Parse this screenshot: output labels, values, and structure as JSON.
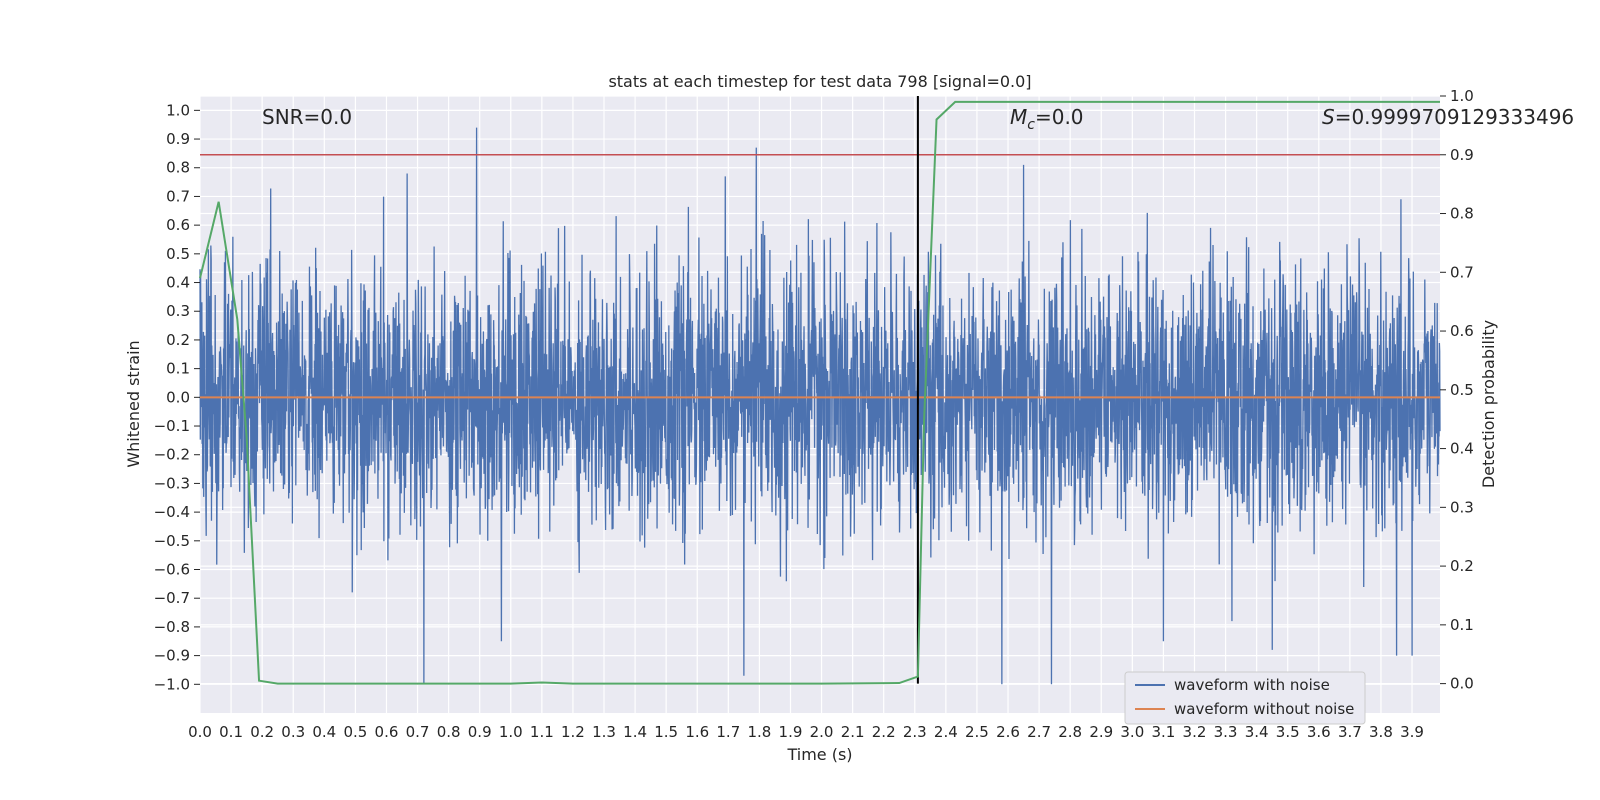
{
  "chart_data": {
    "type": "line",
    "title": "stats at each timestep for test data 798 [signal=0.0]",
    "xlabel": "Time (s)",
    "ylabel": "Whitened strain",
    "y2label": "Detection probability",
    "xlim": [
      0.0,
      3.99
    ],
    "ylim": [
      -1.1,
      1.05
    ],
    "y2lim": [
      -0.05,
      1.0
    ],
    "x_ticks": [
      "0.0",
      "0.1",
      "0.2",
      "0.3",
      "0.4",
      "0.5",
      "0.6",
      "0.7",
      "0.8",
      "0.9",
      "1.0",
      "1.1",
      "1.2",
      "1.3",
      "1.4",
      "1.5",
      "1.6",
      "1.7",
      "1.8",
      "1.9",
      "2.0",
      "2.1",
      "2.2",
      "2.3",
      "2.4",
      "2.5",
      "2.6",
      "2.7",
      "2.8",
      "2.9",
      "3.0",
      "3.1",
      "3.2",
      "3.3",
      "3.4",
      "3.5",
      "3.6",
      "3.7",
      "3.8",
      "3.9"
    ],
    "y_ticks": [
      "1.0",
      "0.9",
      "0.8",
      "0.7",
      "0.6",
      "0.5",
      "0.4",
      "0.3",
      "0.2",
      "0.1",
      "0.0",
      "−0.1",
      "−0.2",
      "−0.3",
      "−0.4",
      "−0.5",
      "−0.6",
      "−0.7",
      "−0.8",
      "−0.9",
      "−1.0"
    ],
    "y2_ticks": [
      "1.0",
      "0.9",
      "0.8",
      "0.7",
      "0.6",
      "0.5",
      "0.4",
      "0.3",
      "0.2",
      "0.1",
      "0.0"
    ],
    "grid": true,
    "legend_position": "lower-right",
    "annotations": {
      "snr": "SNR=0.0",
      "mc_symbol": "M",
      "mc_sub": "c",
      "mc_value": "=0.0",
      "s_symbol": "S",
      "s_value": "=0.9999709129333496"
    },
    "threshold_line": {
      "axis": "y2",
      "value": 0.9,
      "color": "#c44e52"
    },
    "marker_line": {
      "x": 2.31,
      "color": "#000000"
    },
    "series": [
      {
        "name": "waveform with noise",
        "axis": "y",
        "color": "#4c72b0",
        "kind": "noise",
        "spikes": [
          {
            "x": 0.89,
            "y": 0.94
          },
          {
            "x": 1.79,
            "y": 0.87
          },
          {
            "x": 2.65,
            "y": 0.81
          },
          {
            "x": 1.69,
            "y": 0.77
          },
          {
            "x": 0.72,
            "y": -1.0
          },
          {
            "x": 2.58,
            "y": -1.0
          },
          {
            "x": 2.74,
            "y": -1.0
          },
          {
            "x": 1.75,
            "y": -0.97
          },
          {
            "x": 3.85,
            "y": -0.9
          },
          {
            "x": 3.9,
            "y": -0.9
          },
          {
            "x": 0.97,
            "y": -0.85
          },
          {
            "x": 3.1,
            "y": -0.85
          },
          {
            "x": 3.45,
            "y": -0.88
          }
        ]
      },
      {
        "name": "waveform without noise",
        "axis": "y",
        "color": "#dd8452",
        "x": [
          0.0,
          3.99
        ],
        "y": [
          0.0,
          0.0
        ]
      },
      {
        "name": "detection probability",
        "axis": "y2",
        "color": "#55a868",
        "x": [
          0.0,
          0.06,
          0.12,
          0.15,
          0.19,
          0.25,
          0.5,
          1.0,
          1.1,
          1.2,
          1.5,
          2.0,
          2.25,
          2.31,
          2.33,
          2.37,
          2.43,
          3.99
        ],
        "y": [
          0.69,
          0.82,
          0.62,
          0.42,
          0.005,
          0.0,
          0.0,
          0.0,
          0.002,
          0.0,
          0.0,
          0.0,
          0.001,
          0.012,
          0.45,
          0.96,
          0.99,
          0.99
        ]
      }
    ]
  }
}
